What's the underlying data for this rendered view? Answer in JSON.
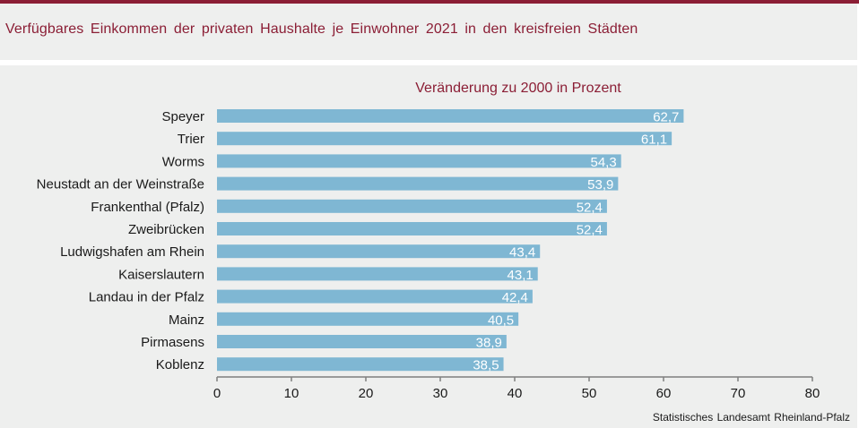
{
  "header": {
    "title": "Verfügbares  Einkommen  der privaten  Haushalte  je Einwohner  2021  in den  kreisfreien  Städten"
  },
  "colors": {
    "accent": "#8b1e35",
    "bar": "#7fb7d3",
    "axis": "#7f7f7f"
  },
  "footer": {
    "source": "Statistisches Landesamt  Rheinland-Pfalz"
  },
  "chart_data": {
    "type": "bar",
    "orientation": "horizontal",
    "title": "Verfügbares Einkommen der privaten Haushalte je Einwohner 2021 in den kreisfreien Städten",
    "subtitle": "Veränderung zu 2000 in Prozent",
    "xlabel": "",
    "ylabel": "",
    "xlim": [
      0,
      80
    ],
    "xticks": [
      0,
      10,
      20,
      30,
      40,
      50,
      60,
      70,
      80
    ],
    "grid": false,
    "legend": "none",
    "categories": [
      "Speyer",
      "Trier",
      "Worms",
      "Neustadt an der Weinstraße",
      "Frankenthal (Pfalz)",
      "Zweibrücken",
      "Ludwigshafen am Rhein",
      "Kaiserslautern",
      "Landau in der Pfalz",
      "Mainz",
      "Pirmasens",
      "Koblenz"
    ],
    "values": [
      62.7,
      61.1,
      54.3,
      53.9,
      52.4,
      52.4,
      43.4,
      43.1,
      42.4,
      40.5,
      38.9,
      38.5
    ],
    "value_labels": [
      "62,7",
      "61,1",
      "54,3",
      "53,9",
      "52,4",
      "52,4",
      "43,4",
      "43,1",
      "42,4",
      "40,5",
      "38,9",
      "38,5"
    ]
  }
}
